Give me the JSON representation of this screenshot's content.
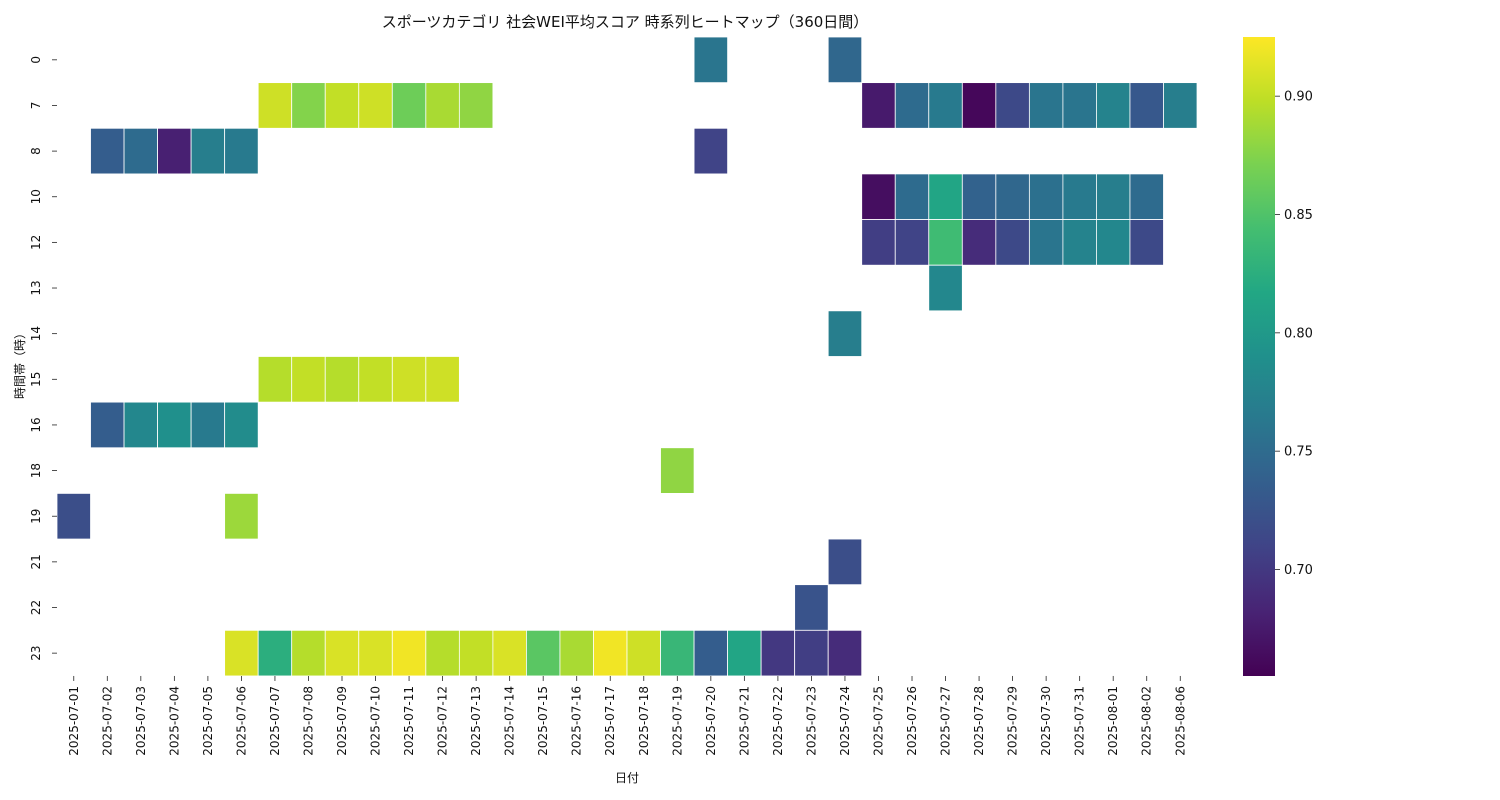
{
  "chart_data": {
    "type": "heatmap",
    "title": "スポーツカテゴリ 社会WEI平均スコア 時系列ヒートマップ（360日間）",
    "xlabel": "日付",
    "ylabel": "時間帯（時）",
    "x_categories": [
      "2025-07-01",
      "2025-07-02",
      "2025-07-03",
      "2025-07-04",
      "2025-07-05",
      "2025-07-06",
      "2025-07-07",
      "2025-07-08",
      "2025-07-09",
      "2025-07-10",
      "2025-07-11",
      "2025-07-12",
      "2025-07-13",
      "2025-07-14",
      "2025-07-15",
      "2025-07-16",
      "2025-07-17",
      "2025-07-18",
      "2025-07-19",
      "2025-07-20",
      "2025-07-21",
      "2025-07-22",
      "2025-07-23",
      "2025-07-24",
      "2025-07-25",
      "2025-07-26",
      "2025-07-27",
      "2025-07-28",
      "2025-07-29",
      "2025-07-30",
      "2025-07-31",
      "2025-08-01",
      "2025-08-02",
      "2025-08-06"
    ],
    "y_categories": [
      "0",
      "7",
      "8",
      "10",
      "12",
      "13",
      "14",
      "15",
      "16",
      "18",
      "19",
      "21",
      "22",
      "23"
    ],
    "colormap": "viridis",
    "colorbar_range": [
      0.655,
      0.925
    ],
    "colorbar_ticks": [
      "0.70",
      "0.75",
      "0.80",
      "0.85",
      "0.90"
    ],
    "cells": [
      {
        "date": "2025-07-20",
        "hour": "0",
        "value": 0.76
      },
      {
        "date": "2025-07-24",
        "hour": "0",
        "value": 0.745
      },
      {
        "date": "2025-07-07",
        "hour": "7",
        "value": 0.905
      },
      {
        "date": "2025-07-08",
        "hour": "7",
        "value": 0.875
      },
      {
        "date": "2025-07-09",
        "hour": "7",
        "value": 0.9
      },
      {
        "date": "2025-07-10",
        "hour": "7",
        "value": 0.905
      },
      {
        "date": "2025-07-11",
        "hour": "7",
        "value": 0.865
      },
      {
        "date": "2025-07-12",
        "hour": "7",
        "value": 0.89
      },
      {
        "date": "2025-07-13",
        "hour": "7",
        "value": 0.88
      },
      {
        "date": "2025-07-25",
        "hour": "7",
        "value": 0.675
      },
      {
        "date": "2025-07-26",
        "hour": "7",
        "value": 0.75
      },
      {
        "date": "2025-07-27",
        "hour": "7",
        "value": 0.765
      },
      {
        "date": "2025-07-28",
        "hour": "7",
        "value": 0.66
      },
      {
        "date": "2025-07-29",
        "hour": "7",
        "value": 0.715
      },
      {
        "date": "2025-07-30",
        "hour": "7",
        "value": 0.76
      },
      {
        "date": "2025-07-31",
        "hour": "7",
        "value": 0.76
      },
      {
        "date": "2025-08-01",
        "hour": "7",
        "value": 0.775
      },
      {
        "date": "2025-08-02",
        "hour": "7",
        "value": 0.73
      },
      {
        "date": "2025-08-06",
        "hour": "7",
        "value": 0.77
      },
      {
        "date": "2025-07-02",
        "hour": "8",
        "value": 0.735
      },
      {
        "date": "2025-07-03",
        "hour": "8",
        "value": 0.75
      },
      {
        "date": "2025-07-04",
        "hour": "8",
        "value": 0.68
      },
      {
        "date": "2025-07-05",
        "hour": "8",
        "value": 0.77
      },
      {
        "date": "2025-07-06",
        "hour": "8",
        "value": 0.765
      },
      {
        "date": "2025-07-20",
        "hour": "8",
        "value": 0.71
      },
      {
        "date": "2025-07-25",
        "hour": "10",
        "value": 0.665
      },
      {
        "date": "2025-07-26",
        "hour": "10",
        "value": 0.75
      },
      {
        "date": "2025-07-27",
        "hour": "10",
        "value": 0.815
      },
      {
        "date": "2025-07-28",
        "hour": "10",
        "value": 0.74
      },
      {
        "date": "2025-07-29",
        "hour": "10",
        "value": 0.745
      },
      {
        "date": "2025-07-30",
        "hour": "10",
        "value": 0.755
      },
      {
        "date": "2025-07-31",
        "hour": "10",
        "value": 0.765
      },
      {
        "date": "2025-08-01",
        "hour": "10",
        "value": 0.77
      },
      {
        "date": "2025-08-02",
        "hour": "10",
        "value": 0.75
      },
      {
        "date": "2025-07-25",
        "hour": "12",
        "value": 0.705
      },
      {
        "date": "2025-07-26",
        "hour": "12",
        "value": 0.71
      },
      {
        "date": "2025-07-27",
        "hour": "12",
        "value": 0.84
      },
      {
        "date": "2025-07-28",
        "hour": "12",
        "value": 0.69
      },
      {
        "date": "2025-07-29",
        "hour": "12",
        "value": 0.715
      },
      {
        "date": "2025-07-30",
        "hour": "12",
        "value": 0.76
      },
      {
        "date": "2025-07-31",
        "hour": "12",
        "value": 0.775
      },
      {
        "date": "2025-08-01",
        "hour": "12",
        "value": 0.78
      },
      {
        "date": "2025-08-02",
        "hour": "12",
        "value": 0.715
      },
      {
        "date": "2025-07-27",
        "hour": "13",
        "value": 0.78
      },
      {
        "date": "2025-07-24",
        "hour": "14",
        "value": 0.77
      },
      {
        "date": "2025-07-07",
        "hour": "15",
        "value": 0.895
      },
      {
        "date": "2025-07-08",
        "hour": "15",
        "value": 0.9
      },
      {
        "date": "2025-07-09",
        "hour": "15",
        "value": 0.895
      },
      {
        "date": "2025-07-10",
        "hour": "15",
        "value": 0.9
      },
      {
        "date": "2025-07-11",
        "hour": "15",
        "value": 0.905
      },
      {
        "date": "2025-07-12",
        "hour": "15",
        "value": 0.905
      },
      {
        "date": "2025-07-02",
        "hour": "16",
        "value": 0.735
      },
      {
        "date": "2025-07-03",
        "hour": "16",
        "value": 0.78
      },
      {
        "date": "2025-07-04",
        "hour": "16",
        "value": 0.79
      },
      {
        "date": "2025-07-05",
        "hour": "16",
        "value": 0.765
      },
      {
        "date": "2025-07-06",
        "hour": "16",
        "value": 0.785
      },
      {
        "date": "2025-07-19",
        "hour": "18",
        "value": 0.88
      },
      {
        "date": "2025-07-01",
        "hour": "19",
        "value": 0.72
      },
      {
        "date": "2025-07-06",
        "hour": "19",
        "value": 0.885
      },
      {
        "date": "2025-07-24",
        "hour": "21",
        "value": 0.72
      },
      {
        "date": "2025-07-23",
        "hour": "22",
        "value": 0.725
      },
      {
        "date": "2025-07-06",
        "hour": "23",
        "value": 0.91
      },
      {
        "date": "2025-07-07",
        "hour": "23",
        "value": 0.825
      },
      {
        "date": "2025-07-08",
        "hour": "23",
        "value": 0.895
      },
      {
        "date": "2025-07-09",
        "hour": "23",
        "value": 0.91
      },
      {
        "date": "2025-07-10",
        "hour": "23",
        "value": 0.91
      },
      {
        "date": "2025-07-11",
        "hour": "23",
        "value": 0.92
      },
      {
        "date": "2025-07-12",
        "hour": "23",
        "value": 0.895
      },
      {
        "date": "2025-07-13",
        "hour": "23",
        "value": 0.9
      },
      {
        "date": "2025-07-14",
        "hour": "23",
        "value": 0.91
      },
      {
        "date": "2025-07-15",
        "hour": "23",
        "value": 0.855
      },
      {
        "date": "2025-07-16",
        "hour": "23",
        "value": 0.89
      },
      {
        "date": "2025-07-17",
        "hour": "23",
        "value": 0.92
      },
      {
        "date": "2025-07-18",
        "hour": "23",
        "value": 0.905
      },
      {
        "date": "2025-07-19",
        "hour": "23",
        "value": 0.835
      },
      {
        "date": "2025-07-20",
        "hour": "23",
        "value": 0.735
      },
      {
        "date": "2025-07-21",
        "hour": "23",
        "value": 0.815
      },
      {
        "date": "2025-07-22",
        "hour": "23",
        "value": 0.7
      },
      {
        "date": "2025-07-23",
        "hour": "23",
        "value": 0.705
      },
      {
        "date": "2025-07-24",
        "hour": "23",
        "value": 0.69
      }
    ]
  }
}
